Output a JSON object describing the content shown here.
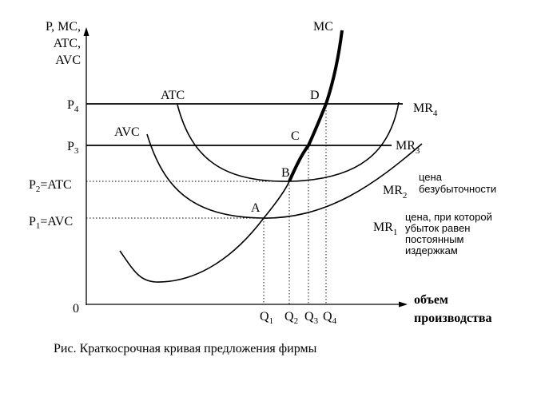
{
  "y_axis_label": [
    "P, MC,",
    "ATC,",
    "AVC"
  ],
  "x_axis_label": [
    "объем",
    "производства"
  ],
  "origin": "0",
  "price_labels": {
    "p4": {
      "base": "P",
      "sub": "4",
      "rest": ""
    },
    "p3": {
      "base": "P",
      "sub": "3",
      "rest": ""
    },
    "p2": {
      "base": "P",
      "sub": "2",
      "rest": "=ATC"
    },
    "p1": {
      "base": "P",
      "sub": "1",
      "rest": "=AVC"
    }
  },
  "quantity_labels": {
    "q1": {
      "base": "Q",
      "sub": "1"
    },
    "q2": {
      "base": "Q",
      "sub": "2"
    },
    "q3": {
      "base": "Q",
      "sub": "3"
    },
    "q4": {
      "base": "Q",
      "sub": "4"
    }
  },
  "curve_labels": {
    "mc": "MC",
    "atc": "ATC",
    "avc": "AVC"
  },
  "mr_labels": {
    "mr4": {
      "base": "MR",
      "sub": "4"
    },
    "mr3": {
      "base": "MR",
      "sub": "3"
    },
    "mr2": {
      "base": "MR",
      "sub": "2"
    },
    "mr1": {
      "base": "MR",
      "sub": "1"
    }
  },
  "points": {
    "a": "A",
    "b": "B",
    "c": "C",
    "d": "D"
  },
  "annotations": {
    "breakeven": [
      "цена",
      "безубыточности"
    ],
    "shutdown": [
      "цена, при которой",
      "убыток равен",
      "постоянным",
      "издержкам"
    ]
  },
  "caption": "Рис. Краткосрочная кривая предложения фирмы"
}
